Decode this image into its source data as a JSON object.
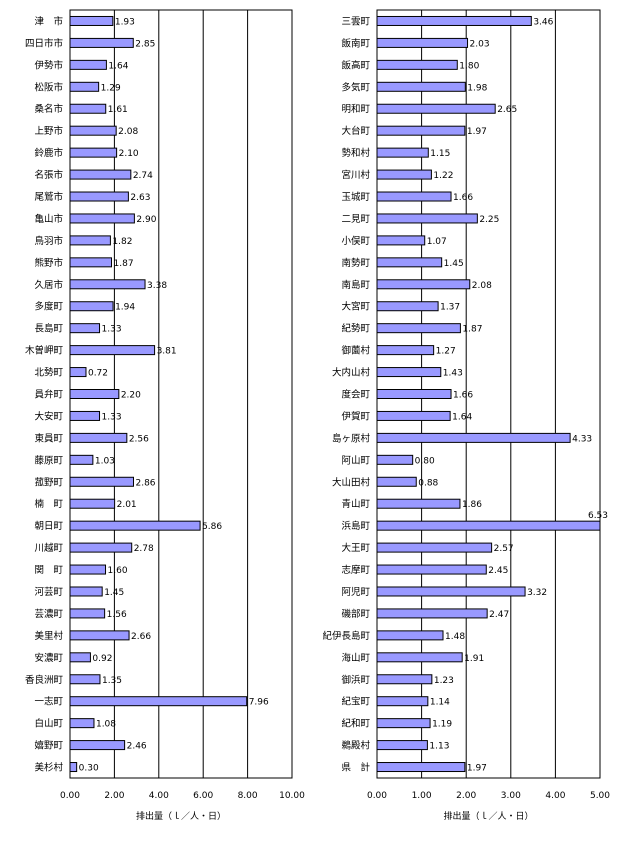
{
  "chart_data": [
    {
      "type": "bar",
      "orientation": "horizontal",
      "xlabel": "排出量（ｌ／人・日）",
      "xlim": [
        0,
        10
      ],
      "xticks": [
        "0.00",
        "2.00",
        "4.00",
        "6.00",
        "8.00",
        "10.00"
      ],
      "grid": "vertical",
      "bar_color": "#9999ff",
      "categories": [
        "津　市",
        "四日市市",
        "伊勢市",
        "松阪市",
        "桑名市",
        "上野市",
        "鈴鹿市",
        "名張市",
        "尾鷲市",
        "亀山市",
        "鳥羽市",
        "熊野市",
        "久居市",
        "多度町",
        "長島町",
        "木曽岬町",
        "北勢町",
        "員弁町",
        "大安町",
        "東員町",
        "藤原町",
        "菰野町",
        "楠　町",
        "朝日町",
        "川越町",
        "関　町",
        "河芸町",
        "芸濃町",
        "美里村",
        "安濃町",
        "香良洲町",
        "一志町",
        "白山町",
        "嬉野町",
        "美杉村"
      ],
      "values": [
        1.93,
        2.85,
        1.64,
        1.29,
        1.61,
        2.08,
        2.1,
        2.74,
        2.63,
        2.9,
        1.82,
        1.87,
        3.38,
        1.94,
        1.33,
        3.81,
        0.72,
        2.2,
        1.33,
        2.56,
        1.03,
        2.86,
        2.01,
        5.86,
        2.78,
        1.6,
        1.45,
        1.56,
        2.66,
        0.92,
        1.35,
        7.96,
        1.08,
        2.46,
        0.3
      ],
      "value_labels": [
        "1.93",
        "2.85",
        "1.64",
        "1.29",
        "1.61",
        "2.08",
        "2.10",
        "2.74",
        "2.63",
        "2.90",
        "1.82",
        "1.87",
        "3.38",
        "1.94",
        "1.33",
        "3.81",
        "0.72",
        "2.20",
        "1.33",
        "2.56",
        "1.03",
        "2.86",
        "2.01",
        "5.86",
        "2.78",
        "1.60",
        "1.45",
        "1.56",
        "2.66",
        "0.92",
        "1.35",
        "7.96",
        "1.08",
        "2.46",
        "0.30"
      ]
    },
    {
      "type": "bar",
      "orientation": "horizontal",
      "xlabel": "排出量（ｌ／人・日）",
      "xlim": [
        0,
        5
      ],
      "xticks": [
        "0.00",
        "1.00",
        "2.00",
        "3.00",
        "4.00",
        "5.00"
      ],
      "grid": "vertical",
      "bar_color": "#9999ff",
      "categories": [
        "三雲町",
        "飯南町",
        "飯高町",
        "多気町",
        "明和町",
        "大台町",
        "勢和村",
        "宮川村",
        "玉城町",
        "二見町",
        "小俣町",
        "南勢町",
        "南島町",
        "大宮町",
        "紀勢町",
        "御薗村",
        "大内山村",
        "度会町",
        "伊賀町",
        "島ヶ原村",
        "阿山町",
        "大山田村",
        "青山町",
        "浜島町",
        "大王町",
        "志摩町",
        "阿児町",
        "磯部町",
        "紀伊長島町",
        "海山町",
        "御浜町",
        "紀宝町",
        "紀和町",
        "鵜殿村",
        "県　計"
      ],
      "values": [
        3.46,
        2.03,
        1.8,
        1.98,
        2.65,
        1.97,
        1.15,
        1.22,
        1.66,
        2.25,
        1.07,
        1.45,
        2.08,
        1.37,
        1.87,
        1.27,
        1.43,
        1.66,
        1.64,
        4.33,
        0.8,
        0.88,
        1.86,
        6.53,
        2.57,
        2.45,
        3.32,
        2.47,
        1.48,
        1.91,
        1.23,
        1.14,
        1.19,
        1.13,
        1.97
      ],
      "value_labels": [
        "3.46",
        "2.03",
        "1.80",
        "1.98",
        "2.65",
        "1.97",
        "1.15",
        "1.22",
        "1.66",
        "2.25",
        "1.07",
        "1.45",
        "2.08",
        "1.37",
        "1.87",
        "1.27",
        "1.43",
        "1.66",
        "1.64",
        "4.33",
        "0.80",
        "0.88",
        "1.86",
        "6.53",
        "2.57",
        "2.45",
        "3.32",
        "2.47",
        "1.48",
        "1.91",
        "1.23",
        "1.14",
        "1.19",
        "1.13",
        "1.97"
      ]
    }
  ]
}
